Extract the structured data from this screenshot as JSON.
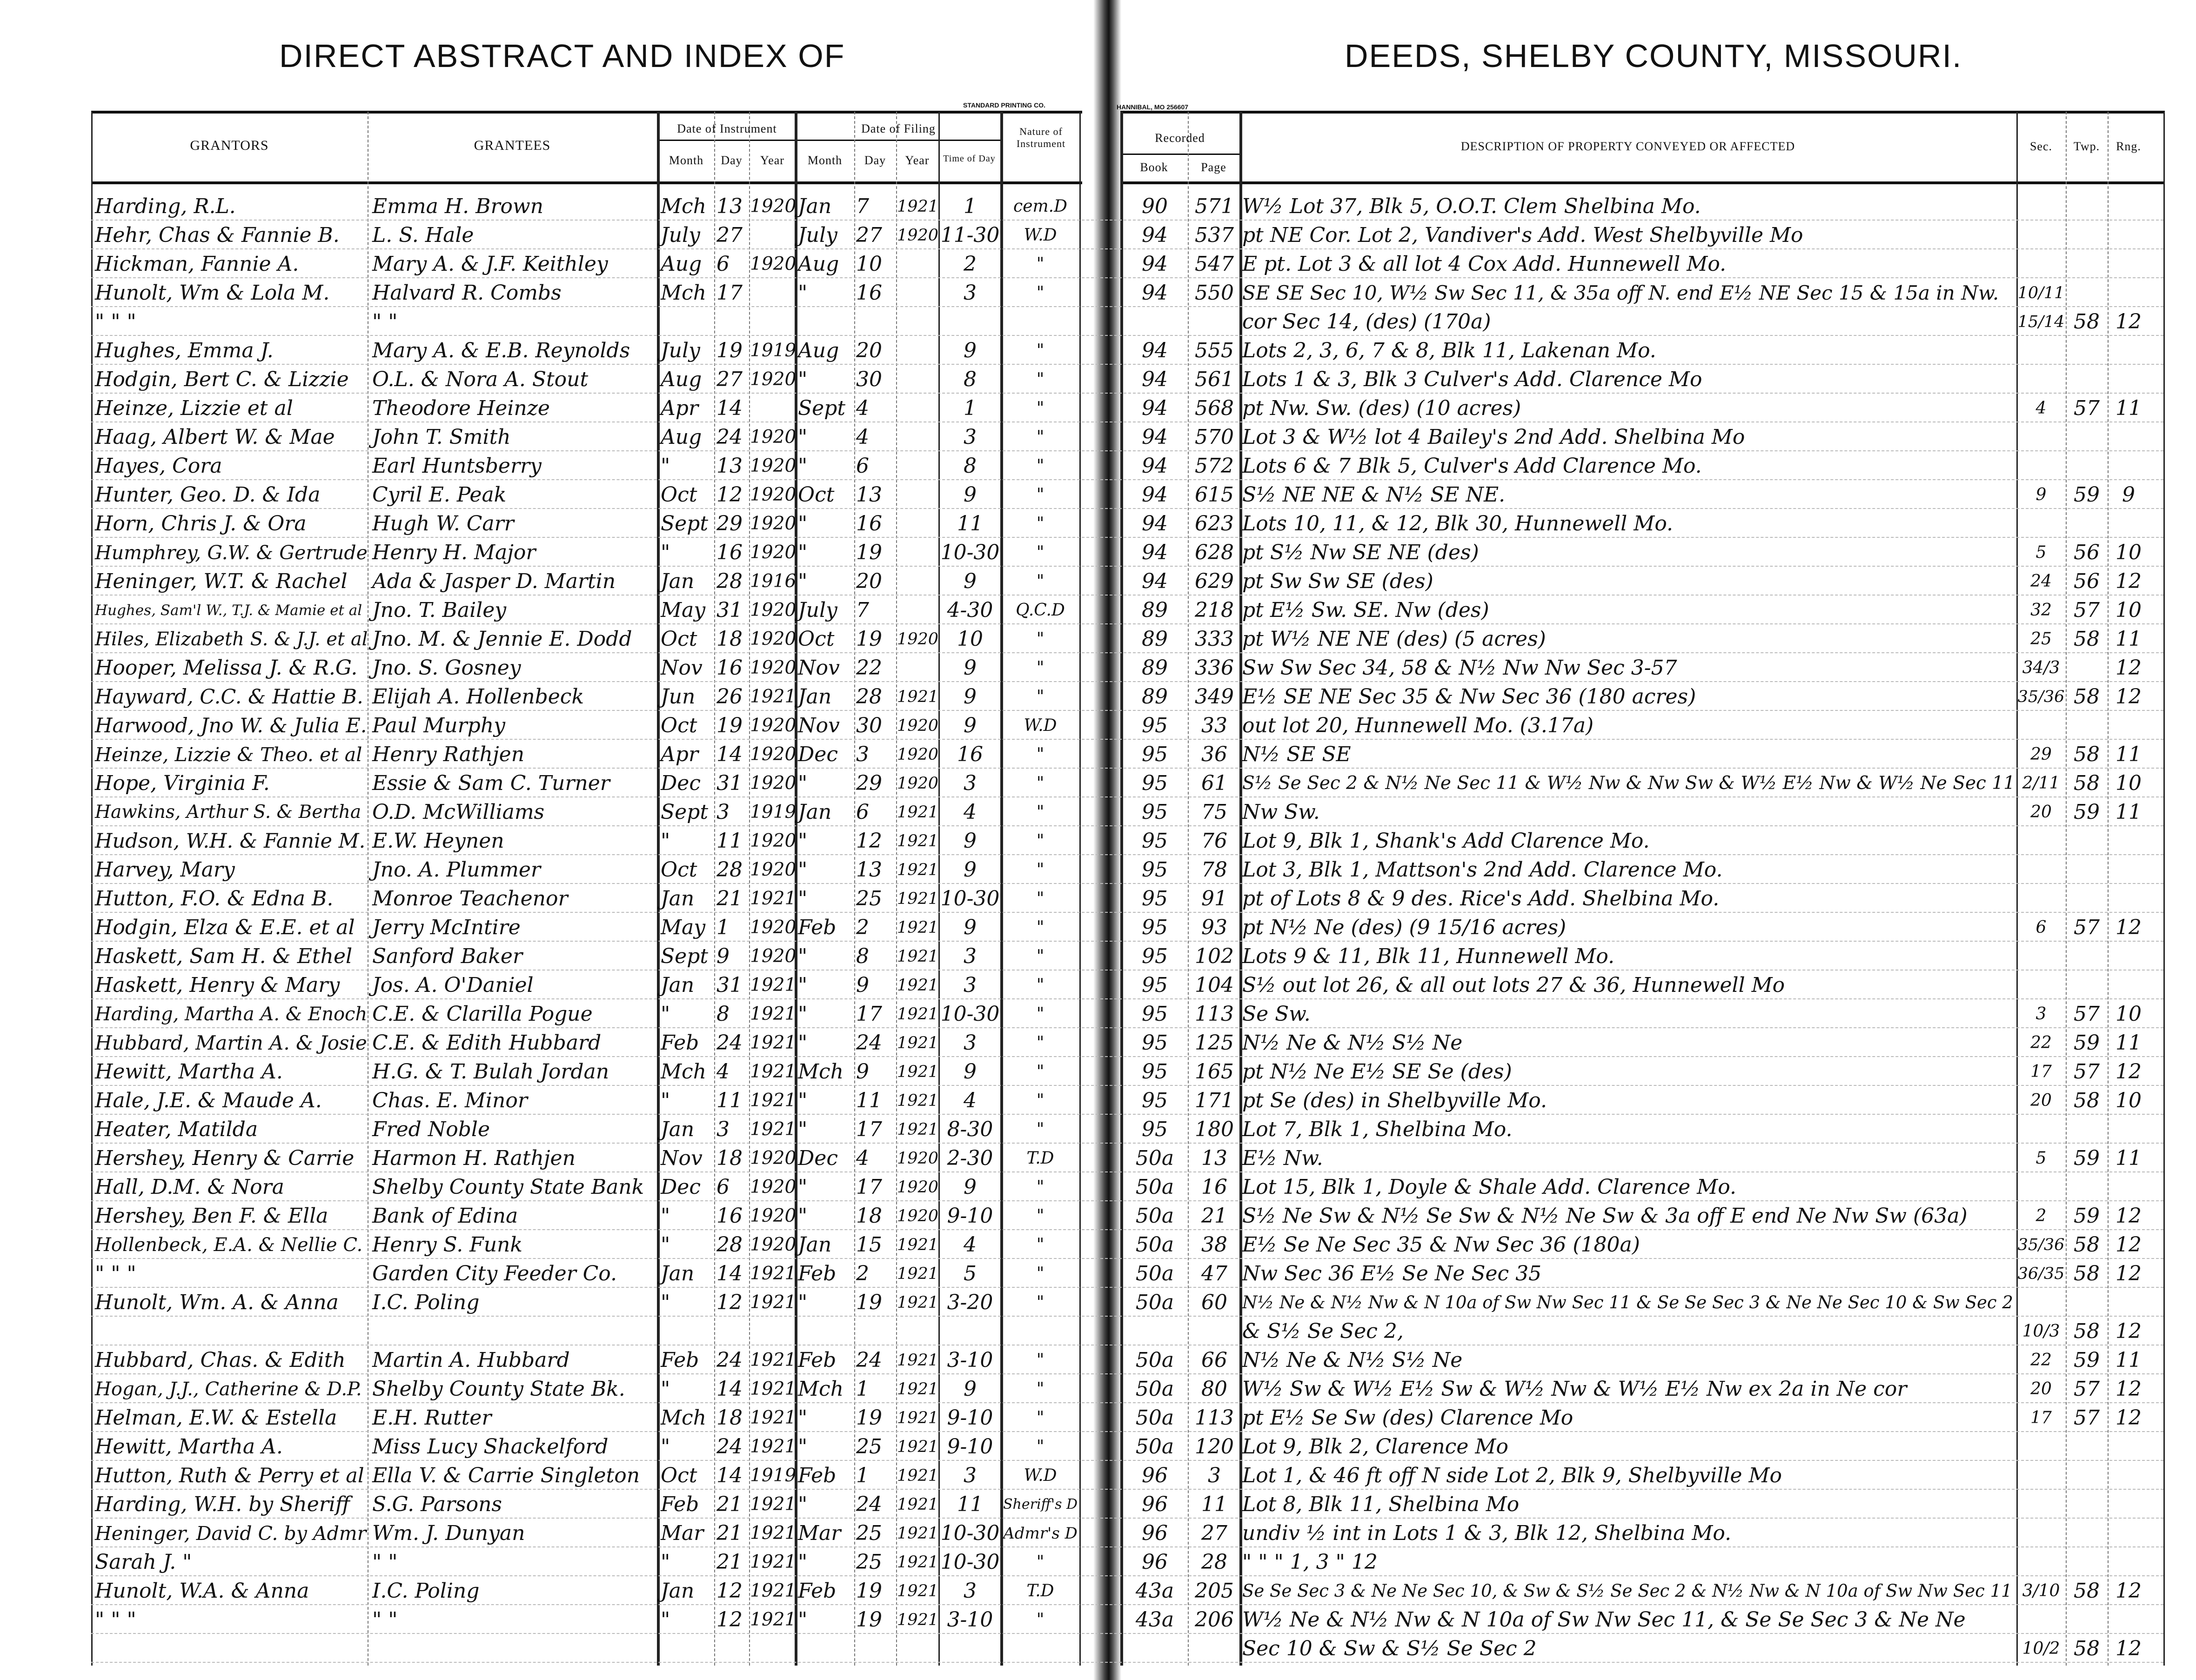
{
  "left_page": {
    "title": "DIRECT ABSTRACT AND INDEX OF",
    "printer_mark": "STANDARD PRINTING CO.",
    "headers": {
      "grantors": "GRANTORS",
      "grantees": "GRANTEES",
      "date_of_instrument": "Date of Instrument",
      "date_of_filing": "Date of Filing",
      "month": "Month",
      "day": "Day",
      "year": "Year",
      "time_of_day": "Time of Day",
      "nature": "Nature of Instrument"
    },
    "rows": [
      [
        "Harding, R.L.",
        "Emma H. Brown",
        "Mch",
        "13",
        "1920",
        "Jan",
        "7",
        "1921",
        "1",
        "cem.D"
      ],
      [
        "Hehr, Chas & Fannie B.",
        "L. S. Hale",
        "July",
        "27",
        "",
        "July",
        "27",
        "1920",
        "11-30",
        "W.D"
      ],
      [
        "Hickman, Fannie A.",
        "Mary A. & J.F. Keithley",
        "Aug",
        "6",
        "1920",
        "Aug",
        "10",
        "",
        "2",
        "\""
      ],
      [
        "Hunolt, Wm & Lola M.",
        "Halvard R. Combs",
        "Mch",
        "17",
        "",
        "\"",
        "16",
        "",
        "3",
        "\""
      ],
      [
        "\"   \"   \"",
        "\"   \"",
        "",
        "",
        "",
        "",
        "",
        "",
        "",
        ""
      ],
      [
        "Hughes, Emma J.",
        "Mary A. & E.B. Reynolds",
        "July",
        "19",
        "1919",
        "Aug",
        "20",
        "",
        "9",
        "\""
      ],
      [
        "Hodgin, Bert C. & Lizzie",
        "O.L. & Nora A. Stout",
        "Aug",
        "27",
        "1920",
        "\"",
        "30",
        "",
        "8",
        "\""
      ],
      [
        "Heinze, Lizzie et al",
        "Theodore Heinze",
        "Apr",
        "14",
        "",
        "Sept",
        "4",
        "",
        "1",
        "\""
      ],
      [
        "Haag, Albert W. & Mae",
        "John T. Smith",
        "Aug",
        "24",
        "1920",
        "\"",
        "4",
        "",
        "3",
        "\""
      ],
      [
        "Hayes, Cora",
        "Earl Huntsberry",
        "\"",
        "13",
        "1920",
        "\"",
        "6",
        "",
        "8",
        "\""
      ],
      [
        "Hunter, Geo. D. & Ida",
        "Cyril E. Peak",
        "Oct",
        "12",
        "1920",
        "Oct",
        "13",
        "",
        "9",
        "\""
      ],
      [
        "Horn, Chris J. & Ora",
        "Hugh W. Carr",
        "Sept",
        "29",
        "1920",
        "\"",
        "16",
        "",
        "11",
        "\""
      ],
      [
        "Humphrey, G.W. & Gertrude",
        "Henry H. Major",
        "\"",
        "16",
        "1920",
        "\"",
        "19",
        "",
        "10-30",
        "\""
      ],
      [
        "Heninger, W.T. & Rachel",
        "Ada & Jasper D. Martin",
        "Jan",
        "28",
        "1916",
        "\"",
        "20",
        "",
        "9",
        "\""
      ],
      [
        "Hughes, Sam'l W., T.J. & Mamie et al",
        "Jno. T. Bailey",
        "May",
        "31",
        "1920",
        "July",
        "7",
        "",
        "4-30",
        "Q.C.D"
      ],
      [
        "Hiles, Elizabeth S. & J.J. et al",
        "Jno. M. & Jennie E. Dodd",
        "Oct",
        "18",
        "1920",
        "Oct",
        "19",
        "1920",
        "10",
        "\""
      ],
      [
        "Hooper, Melissa J. & R.G.",
        "Jno. S. Gosney",
        "Nov",
        "16",
        "1920",
        "Nov",
        "22",
        "",
        "9",
        "\""
      ],
      [
        "Hayward, C.C. & Hattie B.",
        "Elijah A. Hollenbeck",
        "Jun",
        "26",
        "1921",
        "Jan",
        "28",
        "1921",
        "9",
        "\""
      ],
      [
        "Harwood, Jno W. & Julia E.",
        "Paul Murphy",
        "Oct",
        "19",
        "1920",
        "Nov",
        "30",
        "1920",
        "9",
        "W.D"
      ],
      [
        "Heinze, Lizzie & Theo. et al",
        "Henry Rathjen",
        "Apr",
        "14",
        "1920",
        "Dec",
        "3",
        "1920",
        "16",
        "\""
      ],
      [
        "Hope, Virginia F.",
        "Essie & Sam C. Turner",
        "Dec",
        "31",
        "1920",
        "\"",
        "29",
        "1920",
        "3",
        "\""
      ],
      [
        "Hawkins, Arthur S. & Bertha",
        "O.D. McWilliams",
        "Sept",
        "3",
        "1919",
        "Jan",
        "6",
        "1921",
        "4",
        "\""
      ],
      [
        "Hudson, W.H. & Fannie M.",
        "E.W. Heynen",
        "\"",
        "11",
        "1920",
        "\"",
        "12",
        "1921",
        "9",
        "\""
      ],
      [
        "Harvey, Mary",
        "Jno. A. Plummer",
        "Oct",
        "28",
        "1920",
        "\"",
        "13",
        "1921",
        "9",
        "\""
      ],
      [
        "Hutton, F.O. & Edna B.",
        "Monroe Teachenor",
        "Jan",
        "21",
        "1921",
        "\"",
        "25",
        "1921",
        "10-30",
        "\""
      ],
      [
        "Hodgin, Elza & E.E. et al",
        "Jerry McIntire",
        "May",
        "1",
        "1920",
        "Feb",
        "2",
        "1921",
        "9",
        "\""
      ],
      [
        "Haskett, Sam H. & Ethel",
        "Sanford Baker",
        "Sept",
        "9",
        "1920",
        "\"",
        "8",
        "1921",
        "3",
        "\""
      ],
      [
        "Haskett, Henry & Mary",
        "Jos. A. O'Daniel",
        "Jan",
        "31",
        "1921",
        "\"",
        "9",
        "1921",
        "3",
        "\""
      ],
      [
        "Harding, Martha A. & Enoch",
        "C.E. & Clarilla Pogue",
        "\"",
        "8",
        "1921",
        "\"",
        "17",
        "1921",
        "10-30",
        "\""
      ],
      [
        "Hubbard, Martin A. & Josie",
        "C.E. & Edith Hubbard",
        "Feb",
        "24",
        "1921",
        "\"",
        "24",
        "1921",
        "3",
        "\""
      ],
      [
        "Hewitt, Martha A.",
        "H.G. & T. Bulah Jordan",
        "Mch",
        "4",
        "1921",
        "Mch",
        "9",
        "1921",
        "9",
        "\""
      ],
      [
        "Hale, J.E. & Maude A.",
        "Chas. E. Minor",
        "\"",
        "11",
        "1921",
        "\"",
        "11",
        "1921",
        "4",
        "\""
      ],
      [
        "Heater, Matilda",
        "Fred Noble",
        "Jan",
        "3",
        "1921",
        "\"",
        "17",
        "1921",
        "8-30",
        "\""
      ],
      [
        "Hershey, Henry & Carrie",
        "Harmon H. Rathjen",
        "Nov",
        "18",
        "1920",
        "Dec",
        "4",
        "1920",
        "2-30",
        "T.D"
      ],
      [
        "Hall, D.M. & Nora",
        "Shelby County State Bank",
        "Dec",
        "6",
        "1920",
        "\"",
        "17",
        "1920",
        "9",
        "\""
      ],
      [
        "Hershey, Ben F. & Ella",
        "Bank of Edina",
        "\"",
        "16",
        "1920",
        "\"",
        "18",
        "1920",
        "9-10",
        "\""
      ],
      [
        "Hollenbeck, E.A. & Nellie C.",
        "Henry S. Funk",
        "\"",
        "28",
        "1920",
        "Jan",
        "15",
        "1921",
        "4",
        "\""
      ],
      [
        "\"   \"   \"",
        "Garden City Feeder Co.",
        "Jan",
        "14",
        "1921",
        "Feb",
        "2",
        "1921",
        "5",
        "\""
      ],
      [
        "Hunolt, Wm. A. & Anna",
        "I.C. Poling",
        "\"",
        "12",
        "1921",
        "\"",
        "19",
        "1921",
        "3-20",
        "\""
      ],
      [
        "",
        "",
        "",
        "",
        "",
        "",
        "",
        "",
        "",
        ""
      ],
      [
        "Hubbard, Chas. & Edith",
        "Martin A. Hubbard",
        "Feb",
        "24",
        "1921",
        "Feb",
        "24",
        "1921",
        "3-10",
        "\""
      ],
      [
        "Hogan, J.J., Catherine & D.P.",
        "Shelby County State Bk.",
        "\"",
        "14",
        "1921",
        "Mch",
        "1",
        "1921",
        "9",
        "\""
      ],
      [
        "Helman, E.W. & Estella",
        "E.H. Rutter",
        "Mch",
        "18",
        "1921",
        "\"",
        "19",
        "1921",
        "9-10",
        "\""
      ],
      [
        "Hewitt, Martha A.",
        "Miss Lucy Shackelford",
        "\"",
        "24",
        "1921",
        "\"",
        "25",
        "1921",
        "9-10",
        "\""
      ],
      [
        "Hutton, Ruth & Perry et al",
        "Ella V. & Carrie Singleton",
        "Oct",
        "14",
        "1919",
        "Feb",
        "1",
        "1921",
        "3",
        "W.D"
      ],
      [
        "Harding, W.H. by Sheriff",
        "S.G. Parsons",
        "Feb",
        "21",
        "1921",
        "\"",
        "24",
        "1921",
        "11",
        "Sheriff's D"
      ],
      [
        "Heninger, David C. by Admr",
        "Wm. J. Dunyan",
        "Mar",
        "21",
        "1921",
        "Mar",
        "25",
        "1921",
        "10-30",
        "Admr's D"
      ],
      [
        "     Sarah J.  \"",
        "\"   \"",
        "\"",
        "21",
        "1921",
        "\"",
        "25",
        "1921",
        "10-30",
        "\""
      ],
      [
        "Hunolt, W.A. & Anna",
        "I.C. Poling",
        "Jan",
        "12",
        "1921",
        "Feb",
        "19",
        "1921",
        "3",
        "T.D"
      ],
      [
        "\"   \"   \"",
        "\"   \"",
        "\"",
        "12",
        "1921",
        "\"",
        "19",
        "1921",
        "3-10",
        "\""
      ],
      [
        "",
        "",
        "",
        "",
        "",
        "",
        "",
        "",
        "",
        ""
      ]
    ]
  },
  "right_page": {
    "title": "DEEDS, SHELBY COUNTY, MISSOURI.",
    "printer_mark": "HANNIBAL, MO 256607",
    "headers": {
      "recorded": "Recorded",
      "book": "Book",
      "page": "Page",
      "description": "DESCRIPTION OF PROPERTY CONVEYED OR AFFECTED",
      "sec": "Sec.",
      "twp": "Twp.",
      "rng": "Rng."
    },
    "rows": [
      [
        "90",
        "571",
        "W½ Lot 37, Blk 5, O.O.T. Clem Shelbina Mo.",
        "",
        "",
        ""
      ],
      [
        "94",
        "537",
        "pt NE Cor. Lot 2, Vandiver's Add. West Shelbyville Mo",
        "",
        "",
        ""
      ],
      [
        "94",
        "547",
        "E pt. Lot 3 & all lot 4 Cox Add. Hunnewell Mo.",
        "",
        "",
        ""
      ],
      [
        "94",
        "550",
        "SE SE Sec 10, W½ Sw Sec 11, & 35a off N. end E½ NE Sec 15 & 15a in Nw.",
        "10/11",
        "",
        ""
      ],
      [
        "",
        "",
        "cor Sec 14, (des)   (170a)",
        "15/14",
        "58",
        "12"
      ],
      [
        "94",
        "555",
        "Lots 2, 3, 6, 7 & 8, Blk 11, Lakenan Mo.",
        "",
        "",
        ""
      ],
      [
        "94",
        "561",
        "Lots 1 & 3, Blk 3 Culver's Add. Clarence Mo",
        "",
        "",
        ""
      ],
      [
        "94",
        "568",
        "pt Nw. Sw. (des)   (10 acres)",
        "4",
        "57",
        "11"
      ],
      [
        "94",
        "570",
        "Lot 3 & W½ lot 4 Bailey's 2nd Add. Shelbina Mo",
        "",
        "",
        ""
      ],
      [
        "94",
        "572",
        "Lots 6 & 7 Blk 5, Culver's Add Clarence Mo.",
        "",
        "",
        ""
      ],
      [
        "94",
        "615",
        "S½ NE NE & N½ SE NE.",
        "9",
        "59",
        "9"
      ],
      [
        "94",
        "623",
        "Lots 10, 11, & 12, Blk 30, Hunnewell Mo.",
        "",
        "",
        ""
      ],
      [
        "94",
        "628",
        "pt S½ Nw SE NE (des)",
        "5",
        "56",
        "10"
      ],
      [
        "94",
        "629",
        "pt Sw Sw SE (des)",
        "24",
        "56",
        "12"
      ],
      [
        "89",
        "218",
        "pt E½ Sw. SE. Nw (des)",
        "32",
        "57",
        "10"
      ],
      [
        "89",
        "333",
        "pt W½ NE NE (des)   (5 acres)",
        "25",
        "58",
        "11"
      ],
      [
        "89",
        "336",
        "Sw Sw Sec 34, 58 & N½ Nw Nw Sec 3-57",
        "34/3",
        "",
        "12"
      ],
      [
        "89",
        "349",
        "E½ SE NE Sec 35 & Nw Sec 36   (180 acres)",
        "35/36",
        "58",
        "12"
      ],
      [
        "95",
        "33",
        "out lot 20, Hunnewell Mo.   (3.17a)",
        "",
        "",
        ""
      ],
      [
        "95",
        "36",
        "N½ SE SE",
        "29",
        "58",
        "11"
      ],
      [
        "95",
        "61",
        "S½ Se Sec 2 & N½ Ne Sec 11 & W½ Nw & Nw Sw & W½ E½ Nw & W½ Ne Sec 11",
        "2/11",
        "58",
        "10"
      ],
      [
        "95",
        "75",
        "Nw Sw.",
        "20",
        "59",
        "11"
      ],
      [
        "95",
        "76",
        "Lot 9, Blk 1, Shank's Add Clarence Mo.",
        "",
        "",
        ""
      ],
      [
        "95",
        "78",
        "Lot 3, Blk 1, Mattson's 2nd Add. Clarence Mo.",
        "",
        "",
        ""
      ],
      [
        "95",
        "91",
        "pt of Lots 8 & 9 des. Rice's Add. Shelbina Mo.",
        "",
        "",
        ""
      ],
      [
        "95",
        "93",
        "pt N½ Ne   (des)   (9 15/16 acres)",
        "6",
        "57",
        "12"
      ],
      [
        "95",
        "102",
        "Lots 9 & 11, Blk 11, Hunnewell Mo.",
        "",
        "",
        ""
      ],
      [
        "95",
        "104",
        "S½ out lot 26, & all out lots 27 & 36, Hunnewell Mo",
        "",
        "",
        ""
      ],
      [
        "95",
        "113",
        "Se Sw.",
        "3",
        "57",
        "10"
      ],
      [
        "95",
        "125",
        "N½ Ne & N½ S½ Ne",
        "22",
        "59",
        "11"
      ],
      [
        "95",
        "165",
        "pt N½ Ne E½ SE Se (des)",
        "17",
        "57",
        "12"
      ],
      [
        "95",
        "171",
        "pt Se   (des)   in Shelbyville Mo.",
        "20",
        "58",
        "10"
      ],
      [
        "95",
        "180",
        "Lot 7, Blk 1, Shelbina Mo.",
        "",
        "",
        ""
      ],
      [
        "50a",
        "13",
        "E½ Nw.",
        "5",
        "59",
        "11"
      ],
      [
        "50a",
        "16",
        "Lot 15, Blk 1, Doyle & Shale Add. Clarence Mo.",
        "",
        "",
        ""
      ],
      [
        "50a",
        "21",
        "S½ Ne Sw & N½ Se Sw & N½ Ne Sw & 3a off E end Ne Nw Sw (63a)",
        "2",
        "59",
        "12"
      ],
      [
        "50a",
        "38",
        "E½ Se Ne Sec 35 & Nw Sec 36   (180a)",
        "35/36",
        "58",
        "12"
      ],
      [
        "50a",
        "47",
        "Nw Sec 36 E½ Se Ne Sec 35",
        "36/35",
        "58",
        "12"
      ],
      [
        "50a",
        "60",
        "N½ Ne & N½ Nw & N 10a of Sw Nw Sec 11 & Se Se Sec 3 & Ne Ne Sec 10 & Sw Sec 2",
        "",
        "",
        ""
      ],
      [
        "",
        "",
        "& S½ Se Sec 2,",
        "10/3",
        "58",
        "12"
      ],
      [
        "50a",
        "66",
        "N½ Ne & N½ S½ Ne",
        "22",
        "59",
        "11"
      ],
      [
        "50a",
        "80",
        "W½ Sw & W½ E½ Sw & W½ Nw & W½ E½ Nw ex 2a in Ne cor",
        "20",
        "57",
        "12"
      ],
      [
        "50a",
        "113",
        "pt E½ Se Sw   (des)   Clarence Mo",
        "17",
        "57",
        "12"
      ],
      [
        "50a",
        "120",
        "Lot 9, Blk 2, Clarence Mo",
        "",
        "",
        ""
      ],
      [
        "96",
        "3",
        "Lot 1, & 46 ft off N side Lot 2, Blk 9, Shelbyville Mo",
        "",
        "",
        ""
      ],
      [
        "96",
        "11",
        "Lot 8, Blk 11, Shelbina Mo",
        "",
        "",
        ""
      ],
      [
        "96",
        "27",
        "undiv ½ int in Lots 1 & 3, Blk 12, Shelbina Mo.",
        "",
        "",
        ""
      ],
      [
        "96",
        "28",
        "\"   \"   \"   1, 3   \"   12",
        "",
        "",
        ""
      ],
      [
        "43a",
        "205",
        "Se Se Sec 3 & Ne Ne Sec 10, & Sw & S½ Se Sec 2 & N½ Nw & N 10a of Sw Nw Sec 11",
        "3/10",
        "58",
        "12"
      ],
      [
        "43a",
        "206",
        "W½ Ne & N½ Nw & N 10a of Sw Nw Sec 11, & Se Se Sec 3 & Ne Ne",
        "",
        "",
        ""
      ],
      [
        "",
        "",
        "Sec 10 & Sw & S½ Se Sec 2",
        "10/2",
        "58",
        "12"
      ]
    ]
  }
}
